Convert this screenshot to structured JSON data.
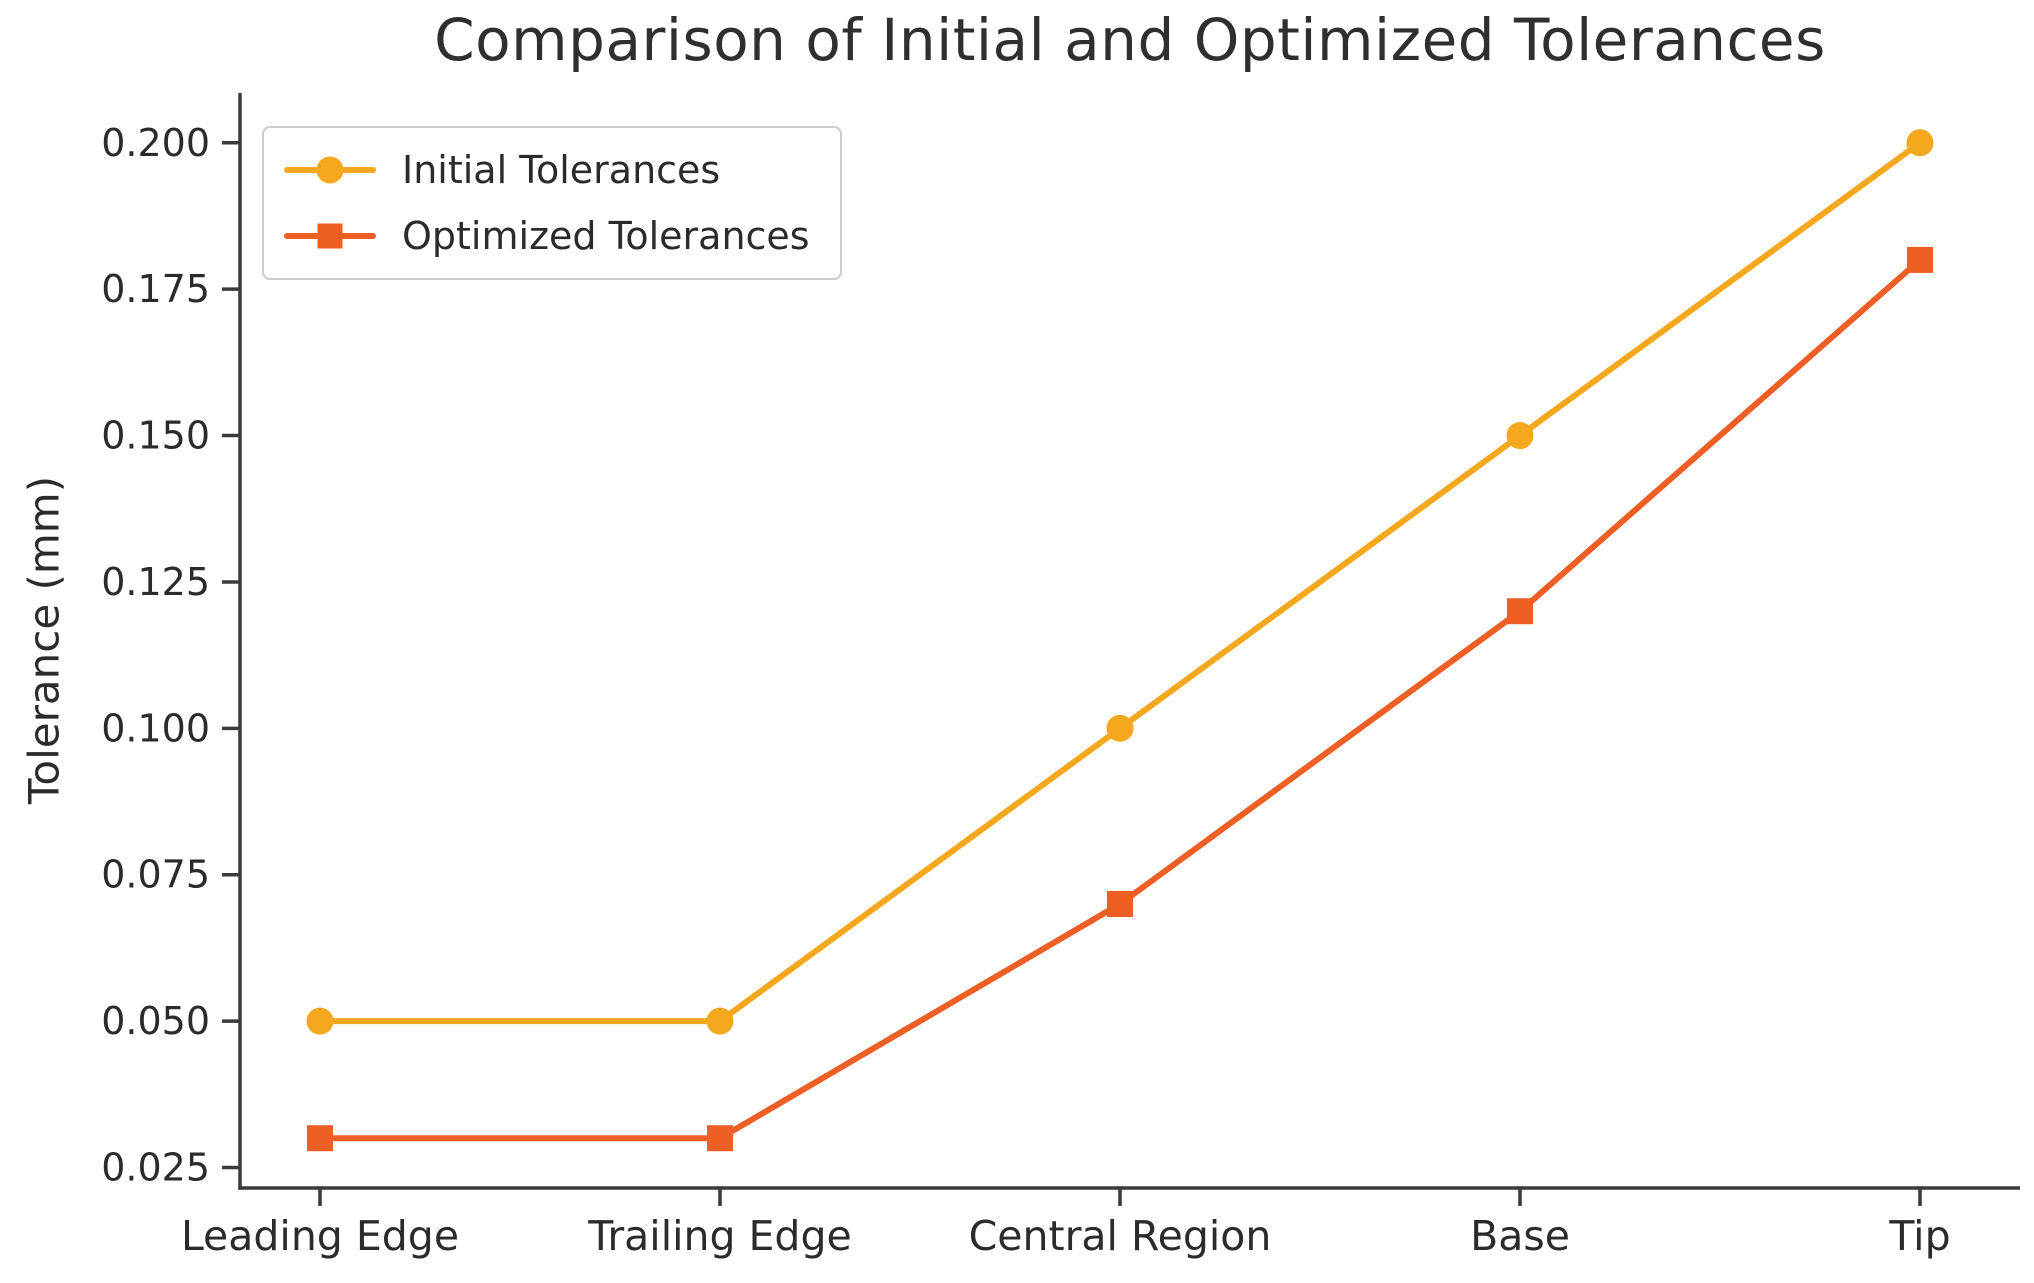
{
  "figure": {
    "title": "Comparison of Initial and Optimized Tolerances",
    "y_axis_label": "Tolerance (mm)"
  },
  "chart_data": {
    "type": "line",
    "title": "Comparison of Initial and Optimized Tolerances",
    "xlabel": "",
    "ylabel": "Tolerance (mm)",
    "categories": [
      "Leading Edge",
      "Trailing Edge",
      "Central Region",
      "Base",
      "Tip"
    ],
    "series": [
      {
        "name": "Initial Tolerances",
        "values": [
          0.05,
          0.05,
          0.1,
          0.15,
          0.2
        ],
        "color": "#F5A71D",
        "marker": "circle"
      },
      {
        "name": "Optimized Tolerances",
        "values": [
          0.03,
          0.03,
          0.07,
          0.12,
          0.18
        ],
        "color": "#EE5F26",
        "marker": "square"
      }
    ],
    "yticks": [
      0.025,
      0.05,
      0.075,
      0.1,
      0.125,
      0.15,
      0.175,
      0.2
    ],
    "ytick_decimals": 3,
    "ylim": [
      0.0215,
      0.2085
    ],
    "grid": false,
    "legend_position": "upper left",
    "axis_color": "#3b3b3b",
    "text_color": "#2b2b2b",
    "background": "#ffffff"
  }
}
